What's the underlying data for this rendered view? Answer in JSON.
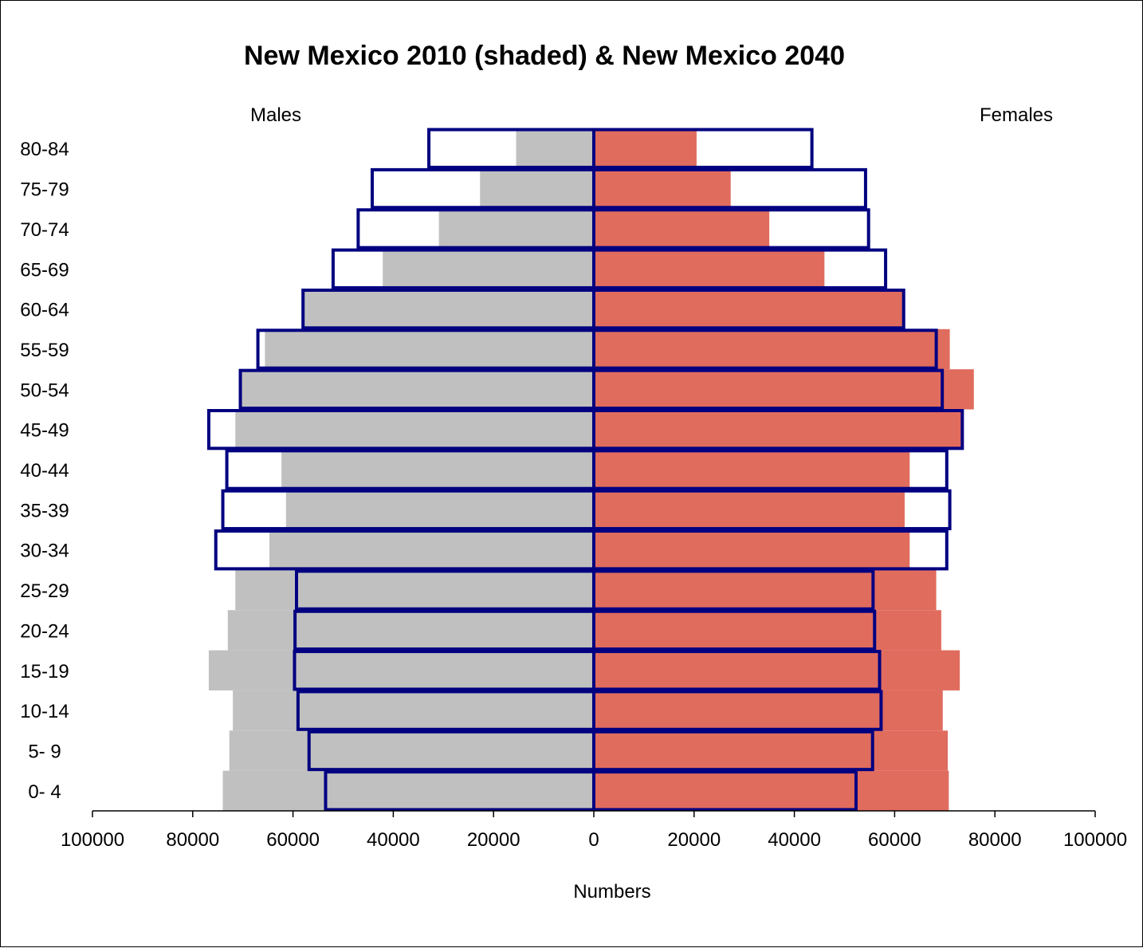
{
  "chart_data": {
    "type": "bar",
    "orientation": "horizontal-population-pyramid",
    "title": "New Mexico 2010 (shaded) & New Mexico 2040",
    "xlabel": "Numbers",
    "left_side_label": "Males",
    "right_side_label": "Females",
    "xlim": [
      -100000,
      100000
    ],
    "x_tick_labels": [
      "100000",
      "80000",
      "60000",
      "40000",
      "20000",
      "0",
      "20000",
      "40000",
      "60000",
      "80000",
      "100000"
    ],
    "x_tick_values": [
      -100000,
      -80000,
      -60000,
      -40000,
      -20000,
      0,
      20000,
      40000,
      60000,
      80000,
      100000
    ],
    "categories": [
      "0- 4",
      "5- 9",
      "10-14",
      "15-19",
      "20-24",
      "25-29",
      "30-34",
      "35-39",
      "40-44",
      "45-49",
      "50-54",
      "55-59",
      "60-64",
      "65-69",
      "70-74",
      "75-79",
      "80-84"
    ],
    "series": [
      {
        "values": [
          74000,
          72700,
          72000,
          76800,
          73000,
          71500,
          64700,
          61400,
          62300,
          71500,
          70700,
          65600,
          58200,
          42100,
          30900,
          22700,
          15500
        ]
      },
      {
        "values": [
          70800,
          70600,
          69600,
          73000,
          69300,
          68300,
          63000,
          62000,
          63000,
          73500,
          75800,
          71000,
          62000,
          46000,
          35000,
          27300,
          20500
        ]
      },
      {
        "values": [
          53500,
          56800,
          59000,
          59700,
          59600,
          59300,
          75400,
          74000,
          73200,
          76800,
          70500,
          67000,
          58000,
          52000,
          47000,
          44200,
          32900
        ]
      },
      {
        "values": [
          52300,
          55600,
          57300,
          57000,
          56000,
          55700,
          70400,
          71000,
          70400,
          73500,
          69500,
          68300,
          61800,
          58200,
          54800,
          54200,
          43500
        ]
      }
    ],
    "colors": {
      "male_2010_fill": "#c0c0c0",
      "female_2010_fill": "#e06c5e",
      "outline_2040": "#000080",
      "axis": "#000000"
    }
  }
}
